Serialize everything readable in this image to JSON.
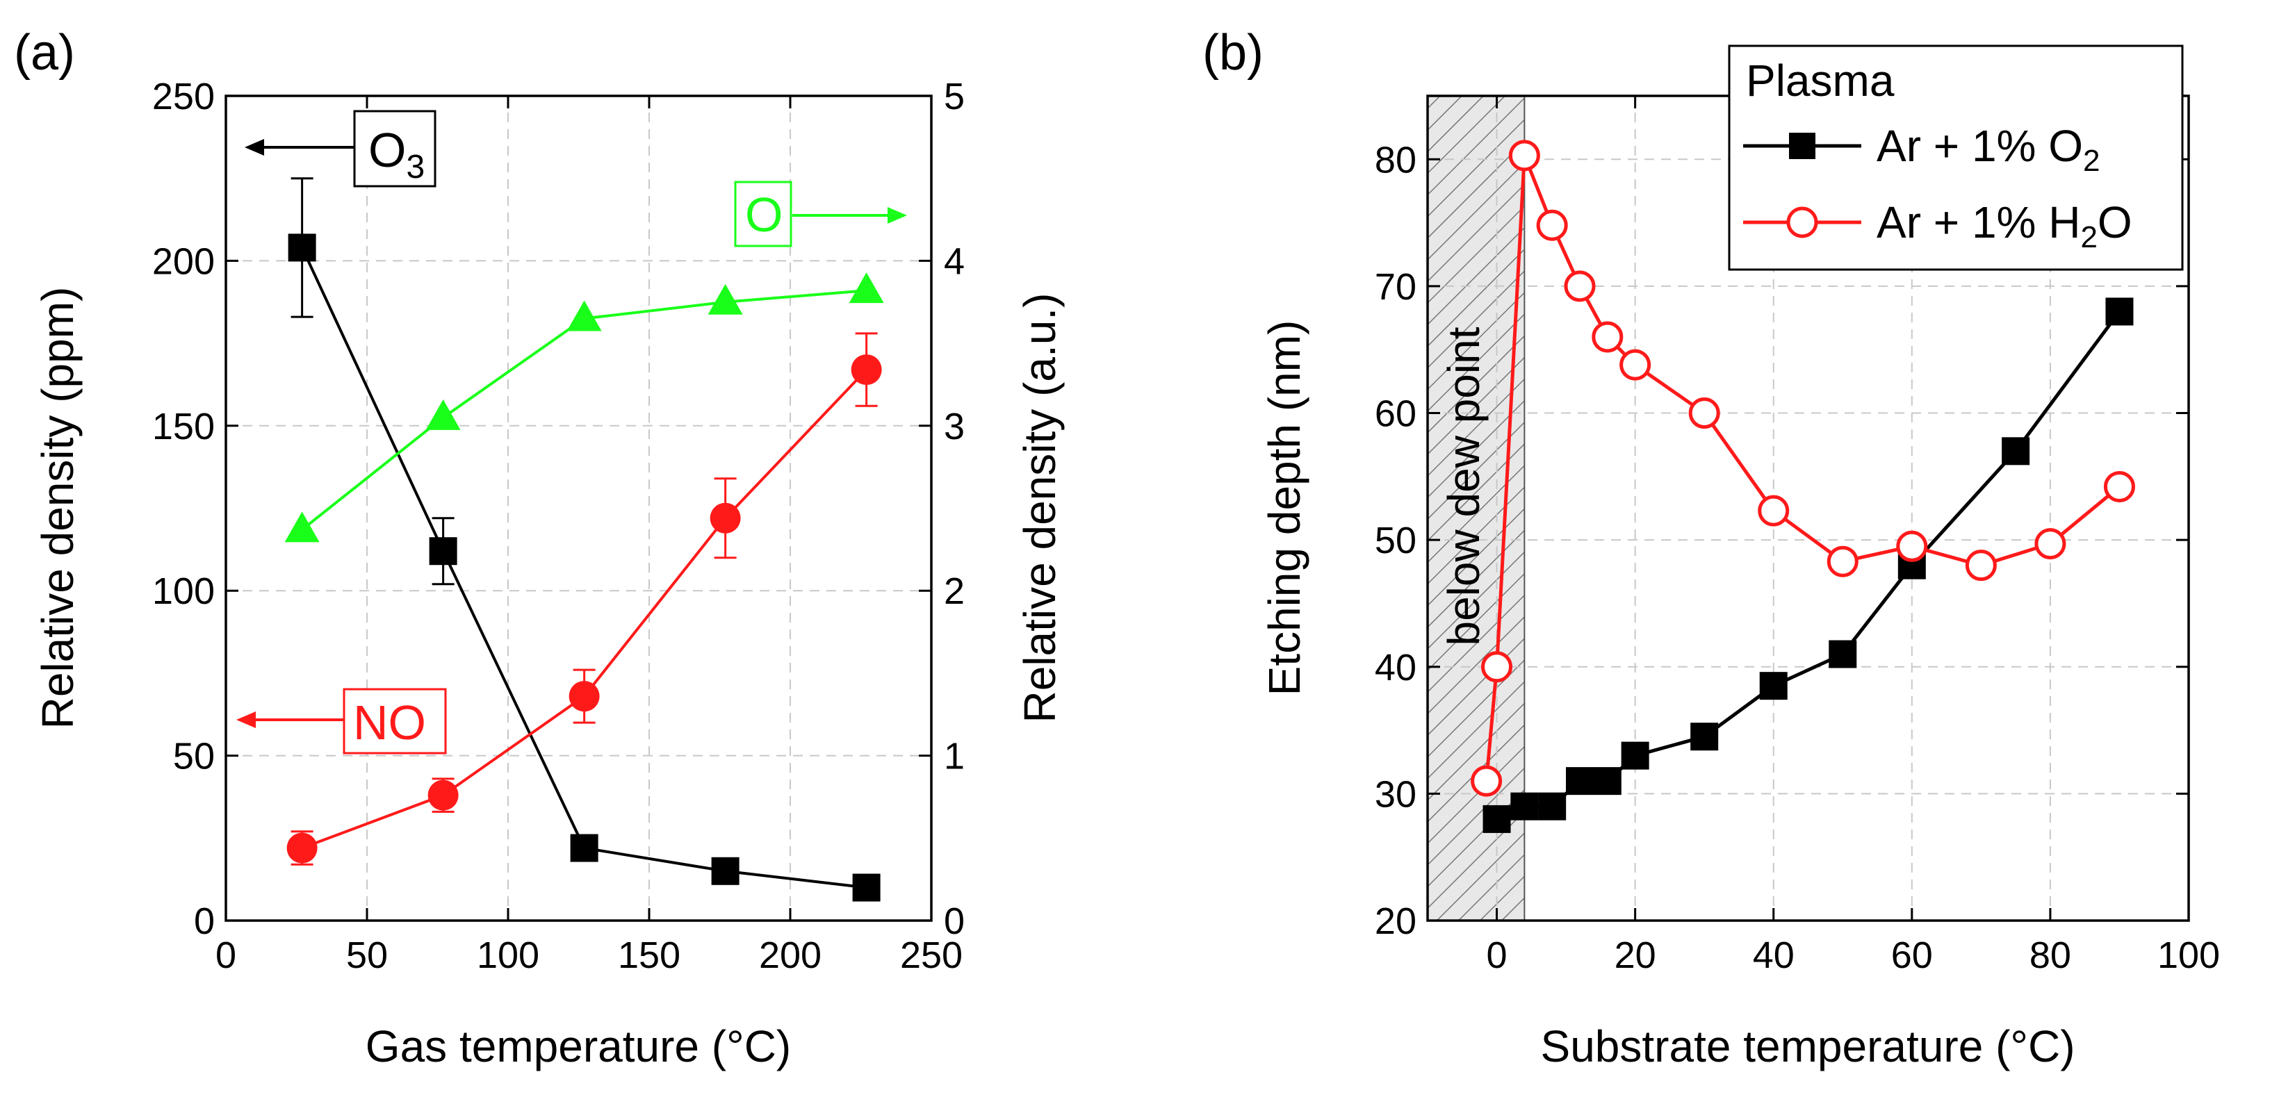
{
  "colors": {
    "black": "#000000",
    "red": "#ff1a1a",
    "green": "#1aff1a",
    "grid": "#c8c8c8",
    "hatch": "#e0e0e0"
  },
  "chart_data": [
    {
      "panel": "(a)",
      "type": "line",
      "xlabel": "Gas temperature (°C)",
      "ylabel_left": "Relative density (ppm)",
      "ylabel_right": "Relative density (a.u.)",
      "xlim": [
        0,
        250
      ],
      "ylim_left": [
        0,
        250
      ],
      "ylim_right": [
        0,
        5
      ],
      "x_ticks": [
        "0",
        "50",
        "100",
        "150",
        "200",
        "250"
      ],
      "y_left_ticks": [
        "0",
        "50",
        "100",
        "150",
        "200",
        "250"
      ],
      "y_right_ticks": [
        "0",
        "1",
        "2",
        "3",
        "4",
        "5"
      ],
      "grid": true,
      "series": [
        {
          "name": "O3",
          "axis": "left",
          "marker": "square",
          "color": "#000000",
          "x": [
            27,
            77,
            127,
            177,
            227
          ],
          "y": [
            204,
            112,
            22,
            15,
            10
          ],
          "err": [
            21,
            10,
            3,
            0,
            0
          ]
        },
        {
          "name": "NO",
          "axis": "left",
          "marker": "circle",
          "color": "#ff1a1a",
          "x": [
            27,
            77,
            127,
            177,
            227
          ],
          "y": [
            22,
            38,
            68,
            122,
            167
          ],
          "err": [
            5,
            5,
            8,
            12,
            11
          ]
        },
        {
          "name": "O",
          "axis": "right",
          "marker": "triangle",
          "color": "#1aff1a",
          "x": [
            27,
            77,
            127,
            177,
            227
          ],
          "y": [
            2.37,
            3.05,
            3.65,
            3.75,
            3.82
          ],
          "err": [
            0,
            0,
            0,
            0,
            0
          ]
        }
      ],
      "annotations": {
        "o3": {
          "main": "O",
          "sub": "3",
          "arrow": "left"
        },
        "o": {
          "main": "O",
          "arrow": "right"
        },
        "no": {
          "main": "NO",
          "arrow": "left"
        }
      }
    },
    {
      "panel": "(b)",
      "type": "line",
      "xlabel": "Substrate temperature (°C)",
      "ylabel": "Etching depth (nm)",
      "xlim": [
        -10,
        100
      ],
      "ylim": [
        20,
        85
      ],
      "x_ticks": [
        "0",
        "20",
        "40",
        "60",
        "80",
        "100"
      ],
      "y_ticks": [
        "20",
        "30",
        "40",
        "50",
        "60",
        "70",
        "80"
      ],
      "grid": true,
      "shaded_region": {
        "x_range": [
          -10,
          4
        ],
        "label": "below dew point"
      },
      "legend": {
        "title": "Plasma",
        "entries": [
          {
            "main": "Ar + 1% O",
            "sub": "2",
            "marker": "square",
            "color": "#000000"
          },
          {
            "main": "Ar + 1% H",
            "sub": "2",
            "tail": "O",
            "marker": "open-circle",
            "color": "#ff1a1a"
          }
        ]
      },
      "series": [
        {
          "name": "Ar + 1% O2",
          "marker": "square",
          "color": "#000000",
          "x": [
            0,
            4,
            8,
            12,
            16,
            20,
            30,
            40,
            50,
            60,
            75,
            90
          ],
          "y": [
            28,
            29,
            29,
            31,
            31,
            33,
            34.5,
            38.5,
            41,
            48,
            57,
            68
          ]
        },
        {
          "name": "Ar + 1% H2O",
          "marker": "open-circle",
          "color": "#ff1a1a",
          "x": [
            -1.5,
            0,
            4,
            8,
            12,
            16,
            20,
            30,
            40,
            50,
            60,
            70,
            80,
            90
          ],
          "y": [
            31,
            40,
            80.3,
            74.8,
            70,
            66,
            63.8,
            60,
            52.3,
            48.3,
            49.5,
            48,
            49.7,
            54.2
          ]
        }
      ]
    }
  ]
}
